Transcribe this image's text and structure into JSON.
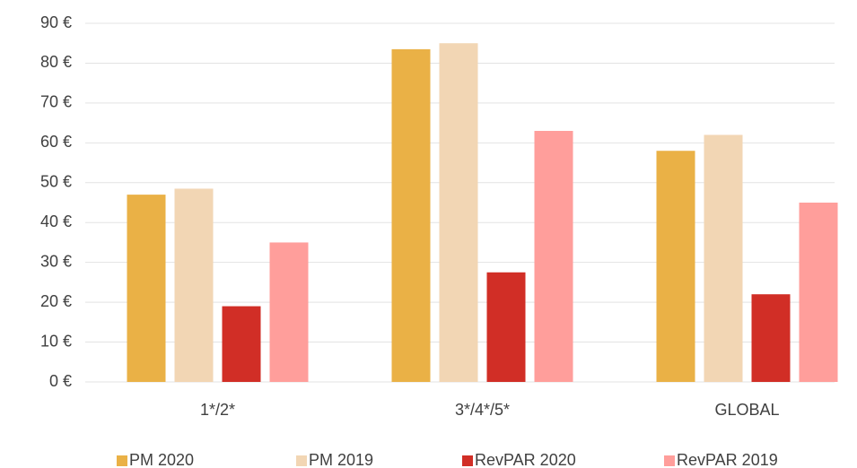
{
  "chart_data": {
    "type": "bar",
    "categories": [
      "1*/2*",
      "3*/4*/5*",
      "GLOBAL"
    ],
    "series": [
      {
        "name": "PM 2020",
        "color": "#EAB146",
        "values": [
          47,
          83.5,
          58
        ]
      },
      {
        "name": "PM 2019",
        "color": "#F2D6B4",
        "values": [
          48.5,
          85,
          62
        ]
      },
      {
        "name": "RevPAR 2020",
        "color": "#D12E26",
        "values": [
          19,
          27.5,
          22
        ]
      },
      {
        "name": "RevPAR 2019",
        "color": "#FF9E9B",
        "values": [
          35,
          63,
          45
        ]
      }
    ],
    "ylim": [
      0,
      90
    ],
    "yticks": [
      {
        "value": 0,
        "label": "0 €"
      },
      {
        "value": 10,
        "label": "10 €"
      },
      {
        "value": 20,
        "label": "20 €"
      },
      {
        "value": 30,
        "label": "30 €"
      },
      {
        "value": 40,
        "label": "40 €"
      },
      {
        "value": 50,
        "label": "50 €"
      },
      {
        "value": 60,
        "label": "60 €"
      },
      {
        "value": 70,
        "label": "70 €"
      },
      {
        "value": 80,
        "label": "80 €"
      },
      {
        "value": 90,
        "label": "90 €"
      }
    ],
    "grid": true,
    "legend": "bottom"
  }
}
